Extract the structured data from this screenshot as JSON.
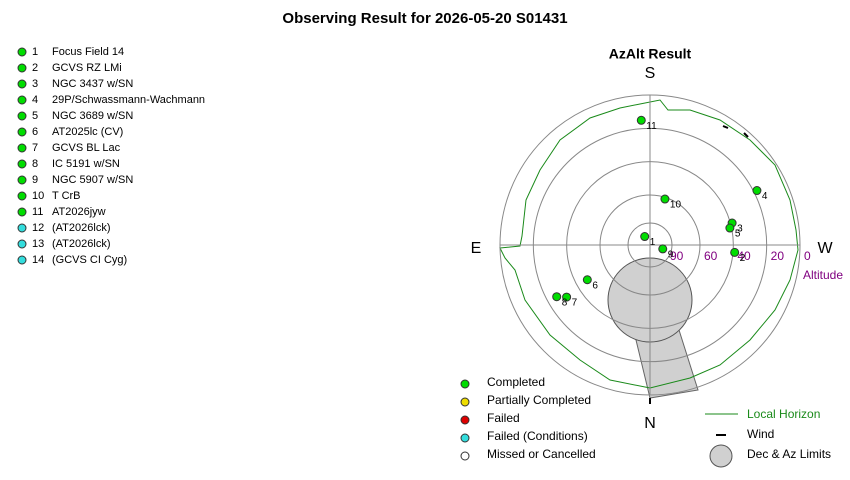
{
  "title": "Observing Result for 2026-05-20 S01431",
  "targets": [
    {
      "number": 1,
      "name": "Focus Field 14",
      "color": "#00dd00"
    },
    {
      "number": 2,
      "name": "GCVS RZ LMi",
      "color": "#00dd00"
    },
    {
      "number": 3,
      "name": "NGC 3437 w/SN",
      "color": "#00dd00"
    },
    {
      "number": 4,
      "name": "29P/Schwassmann-Wachmann",
      "color": "#00dd00"
    },
    {
      "number": 5,
      "name": "NGC 3689 w/SN",
      "color": "#00dd00"
    },
    {
      "number": 6,
      "name": "AT2025lc (CV)",
      "color": "#00dd00"
    },
    {
      "number": 7,
      "name": "GCVS BL Lac",
      "color": "#00dd00"
    },
    {
      "number": 8,
      "name": "IC 5191 w/SN",
      "color": "#00dd00"
    },
    {
      "number": 9,
      "name": "NGC 5907 w/SN",
      "color": "#00dd00"
    },
    {
      "number": 10,
      "name": "T CrB",
      "color": "#00dd00"
    },
    {
      "number": 11,
      "name": "AT2026jyw",
      "color": "#00dd00"
    },
    {
      "number": 12,
      "name": "(AT2026lck)",
      "color": "#33dddd"
    },
    {
      "number": 13,
      "name": "(AT2026lck)",
      "color": "#33dddd"
    },
    {
      "number": 14,
      "name": "(GCVS CI Cyg)",
      "color": "#33dddd"
    }
  ],
  "chart_data": {
    "type": "polar",
    "title": "AzAlt Result",
    "cardinals": [
      "S",
      "E",
      "W",
      "N"
    ],
    "rlabel": "Altitude",
    "rlim": [
      90,
      0
    ],
    "rticks": [
      90,
      60,
      40,
      20,
      0
    ],
    "points": [
      {
        "label": "1",
        "az": 148,
        "alt": 84,
        "color": "#00dd00"
      },
      {
        "label": "2",
        "az": 275,
        "alt": 39,
        "color": "#00dd00"
      },
      {
        "label": "3",
        "az": 255,
        "alt": 39,
        "color": "#00dd00"
      },
      {
        "label": "4",
        "az": 243,
        "alt": 18,
        "color": "#00dd00"
      },
      {
        "label": "5",
        "az": 258,
        "alt": 41,
        "color": "#00dd00"
      },
      {
        "label": "6",
        "az": 61,
        "alt": 47,
        "color": "#00dd00"
      },
      {
        "label": "7",
        "az": 58,
        "alt": 31,
        "color": "#00dd00"
      },
      {
        "label": "8",
        "az": 61,
        "alt": 26,
        "color": "#00dd00"
      },
      {
        "label": "9",
        "az": 287,
        "alt": 82,
        "color": "#00dd00"
      },
      {
        "label": "10",
        "az": 198,
        "alt": 61,
        "color": "#00dd00"
      },
      {
        "label": "11",
        "az": 176,
        "alt": 15,
        "color": "#00dd00"
      }
    ],
    "legend": [
      {
        "label": "Completed",
        "color": "#00dd00"
      },
      {
        "label": "Partially Completed",
        "color": "#eedd00"
      },
      {
        "label": "Failed",
        "color": "#dd0000"
      },
      {
        "label": "Failed (Conditions)",
        "color": "#33dddd"
      },
      {
        "label": "Missed or Cancelled",
        "color": "#ffffff"
      }
    ],
    "key": [
      "Local Horizon",
      "Wind",
      "Dec & Az Limits"
    ]
  }
}
